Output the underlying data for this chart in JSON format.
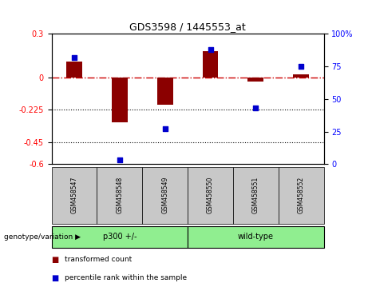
{
  "title": "GDS3598 / 1445553_at",
  "samples": [
    "GSM458547",
    "GSM458548",
    "GSM458549",
    "GSM458550",
    "GSM458551",
    "GSM458552"
  ],
  "red_values": [
    0.11,
    -0.31,
    -0.19,
    0.18,
    -0.03,
    0.02
  ],
  "blue_values": [
    82,
    3,
    27,
    88,
    43,
    75
  ],
  "ylim_left": [
    -0.6,
    0.3
  ],
  "ylim_right": [
    0,
    100
  ],
  "yticks_left": [
    0.3,
    0.0,
    -0.225,
    -0.45,
    -0.6
  ],
  "yticks_right": [
    100,
    75,
    50,
    25,
    0
  ],
  "ytick_labels_left": [
    "0.3",
    "0",
    "-0.225",
    "-0.45",
    "-0.6"
  ],
  "ytick_labels_right": [
    "100%",
    "75",
    "50",
    "25",
    "0"
  ],
  "hline_y": 0,
  "dotted_lines": [
    -0.225,
    -0.45
  ],
  "group1_label": "p300 +/-",
  "group2_label": "wild-type",
  "group1_indices": [
    0,
    1,
    2
  ],
  "group2_indices": [
    3,
    4,
    5
  ],
  "genotype_label": "genotype/variation",
  "legend_red": "transformed count",
  "legend_blue": "percentile rank within the sample",
  "bar_color": "#8B0000",
  "dot_color": "#0000CD",
  "hline_color": "#CC0000",
  "group_color": "#90EE90",
  "bg_color": "#C8C8C8",
  "bar_width": 0.35,
  "dot_size": 18
}
